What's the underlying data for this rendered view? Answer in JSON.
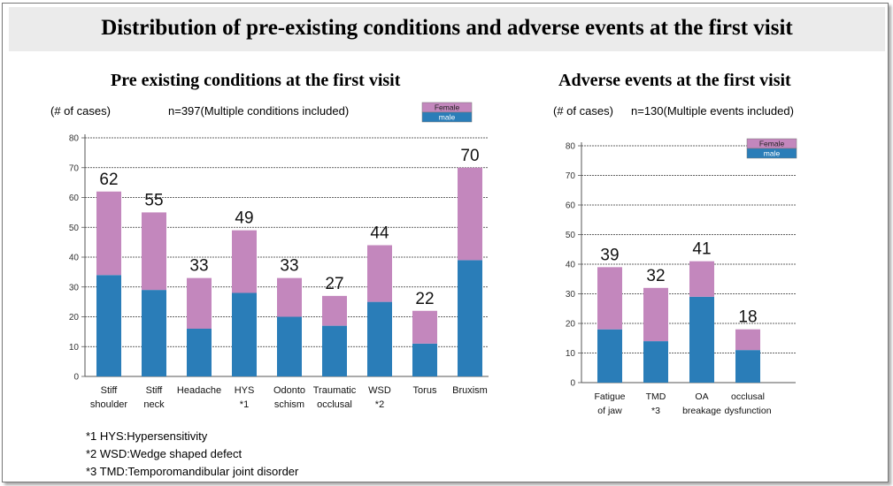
{
  "header": {
    "title": "Distribution of pre-existing conditions  and adverse events at the first visit"
  },
  "colors": {
    "male": "#2a7db8",
    "female": "#c387bd"
  },
  "chart_data": [
    {
      "type": "bar",
      "stacked": true,
      "title": "Pre existing conditions at the first visit",
      "ylabel": "(# of cases)",
      "note": "n=397(Multiple conditions included)",
      "categories": [
        [
          "Stiff",
          "shoulder"
        ],
        [
          "Stiff",
          "neck"
        ],
        [
          "Headache"
        ],
        [
          "HYS",
          "*1"
        ],
        [
          "Odonto",
          "schism"
        ],
        [
          "Traumatic",
          "occlusal"
        ],
        [
          "WSD",
          "*2"
        ],
        [
          "Torus"
        ],
        [
          "Bruxism"
        ]
      ],
      "series": [
        {
          "name": "male",
          "values": [
            34,
            29,
            16,
            28,
            20,
            17,
            25,
            11,
            39
          ]
        },
        {
          "name": "Female",
          "values": [
            28,
            26,
            17,
            21,
            13,
            10,
            19,
            11,
            31
          ]
        }
      ],
      "totals": [
        62,
        55,
        33,
        49,
        33,
        27,
        44,
        22,
        70
      ],
      "ylim": [
        0,
        80
      ],
      "yticks": [
        0,
        10,
        20,
        30,
        40,
        50,
        60,
        70,
        80
      ],
      "grid": true,
      "legend": "top-right"
    },
    {
      "type": "bar",
      "stacked": true,
      "title": "Adverse events at the first visit",
      "ylabel": "(# of cases)",
      "note": "n=130(Multiple events included)",
      "categories": [
        [
          "Fatigue",
          "of jaw"
        ],
        [
          "TMD",
          "*3"
        ],
        [
          "OA",
          "breakage"
        ],
        [
          "occlusal",
          "dysfunction"
        ]
      ],
      "series": [
        {
          "name": "male",
          "values": [
            18,
            14,
            29,
            11
          ]
        },
        {
          "name": "Female",
          "values": [
            21,
            18,
            12,
            7
          ]
        }
      ],
      "totals": [
        39,
        32,
        41,
        18
      ],
      "ylim": [
        0,
        80
      ],
      "yticks": [
        0,
        10,
        20,
        30,
        40,
        50,
        60,
        70,
        80
      ],
      "grid": true,
      "legend": "top-right"
    }
  ],
  "footnotes": [
    "*1 HYS:Hypersensitivity",
    "*2 WSD:Wedge shaped defect",
    "*3 TMD:Temporomandibular joint disorder"
  ]
}
